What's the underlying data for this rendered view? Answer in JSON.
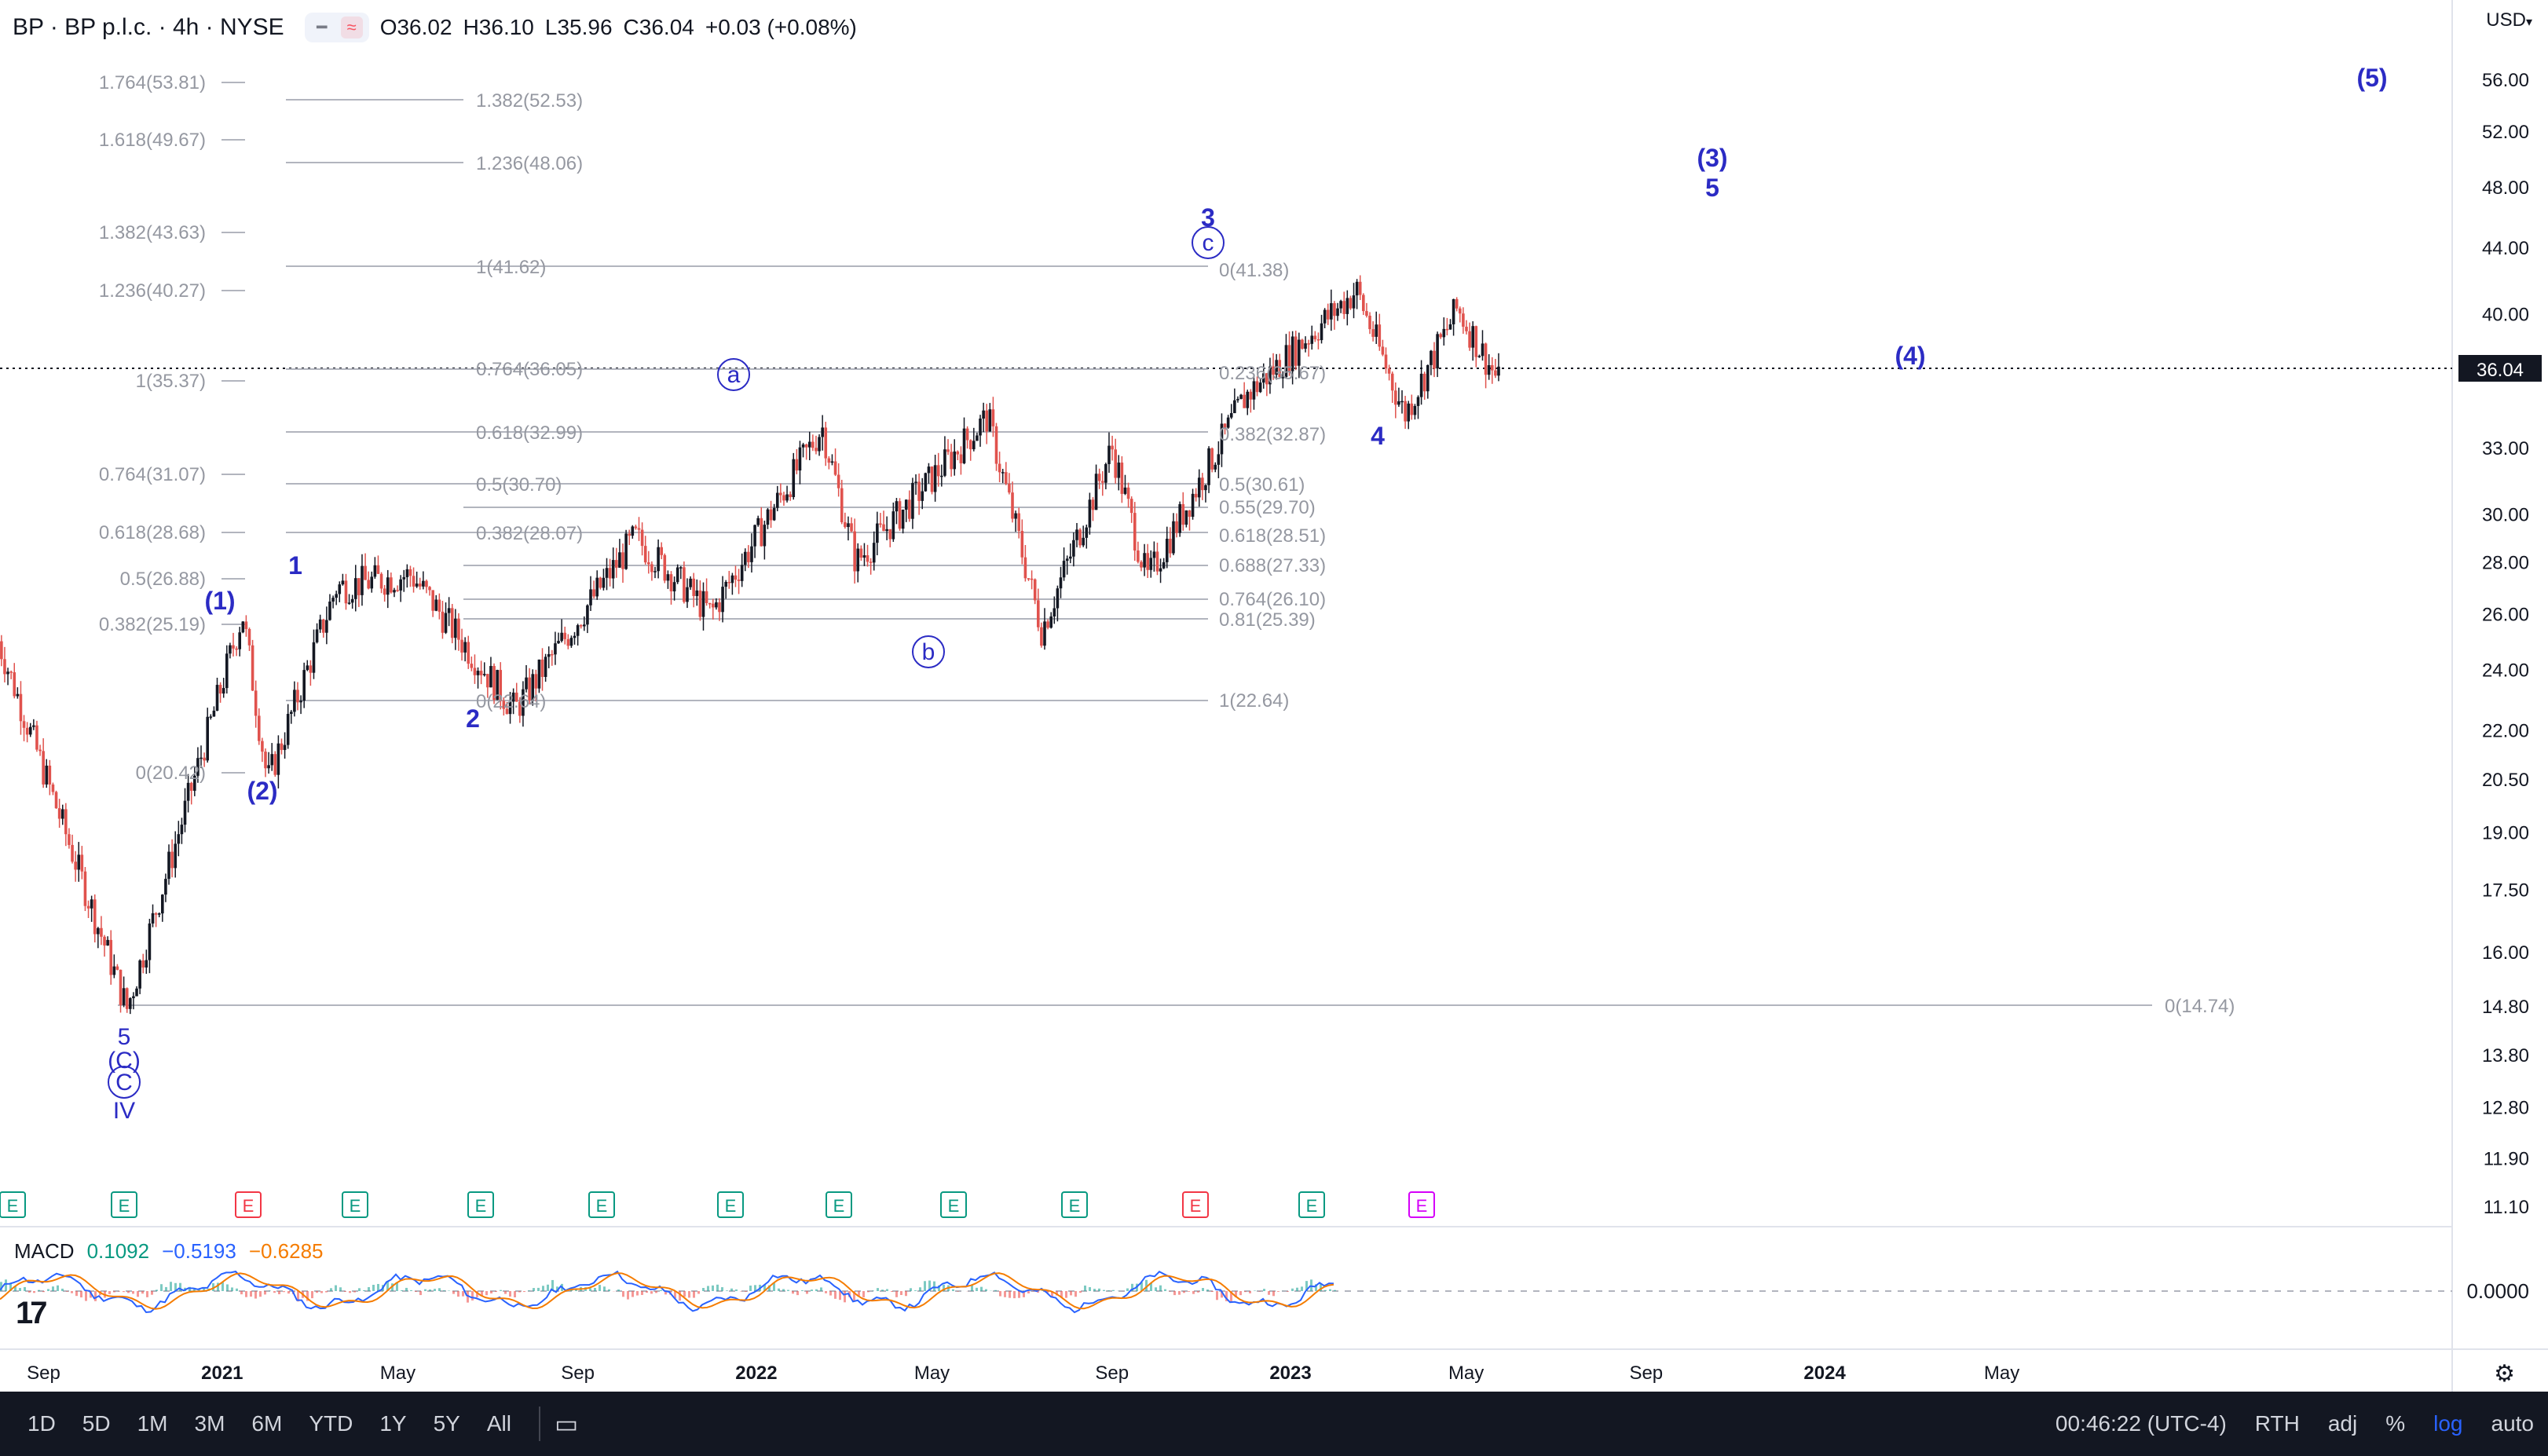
{
  "header": {
    "symbol_line": "BP · BP p.l.c. · 4h · NYSE",
    "ohlc": [
      {
        "k": "O",
        "v": "36.02"
      },
      {
        "k": "H",
        "v": "36.10"
      },
      {
        "k": "L",
        "v": "35.96"
      },
      {
        "k": "C",
        "v": "36.04"
      }
    ],
    "change": "+0.03 (+0.08%)",
    "currency": "USD"
  },
  "price_axis": {
    "ticks": [
      "56.00",
      "52.00",
      "48.00",
      "44.00",
      "40.00",
      "33.00",
      "30.00",
      "28.00",
      "26.00",
      "24.00",
      "22.00",
      "20.50",
      "19.00",
      "17.50",
      "16.00",
      "14.80",
      "13.80",
      "12.80",
      "11.90",
      "11.10"
    ],
    "last_price": "36.04",
    "last_price_color": "#131722"
  },
  "time_axis": {
    "labels": [
      "Sep",
      "2021",
      "May",
      "Sep",
      "2022",
      "May",
      "Sep",
      "2023",
      "May",
      "Sep",
      "2024",
      "May"
    ]
  },
  "fib_labels_left": [
    "1.764(53.81)",
    "1.618(49.67)",
    "1.382(43.63)",
    "1.236(40.27)",
    "1(35.37)",
    "0.764(31.07)",
    "0.618(28.68)",
    "0.5(26.88)",
    "0.382(25.19)",
    "0(20.42)"
  ],
  "fib_labels_mid": [
    "1.382(52.53)",
    "1.236(48.06)",
    "1(41.62)",
    "0.764(36.05)",
    "0.618(32.99)",
    "0.5(30.70)",
    "0.382(28.07)",
    "0(22.64)"
  ],
  "fib_labels_right": [
    "0(41.38)",
    "0.236(35.67)",
    "0.382(32.87)",
    "0.5(30.61)",
    "0.55(29.70)",
    "0.618(28.51)",
    "0.688(27.33)",
    "0.764(26.10)",
    "0.81(25.39)",
    "1(22.64)"
  ],
  "fib_label_far": "0(14.74)",
  "wave_labels": {
    "w1": "1",
    "w2": "2",
    "w3": "3",
    "w4": "4",
    "w5": "5",
    "p1": "(1)",
    "p2": "(2)",
    "p3": "(3)",
    "p4": "(4)",
    "p5": "(5)",
    "c_a": "a",
    "c_b": "b",
    "c_c": "c",
    "bottom_5": "5",
    "bottom_C_paren": "(C)",
    "bottom_C": "C",
    "bottom_IV": "IV"
  },
  "events": [
    "E",
    "E",
    "E",
    "E",
    "E",
    "E",
    "E",
    "E",
    "E",
    "E",
    "E",
    "E",
    "E"
  ],
  "macd": {
    "name": "MACD",
    "v1": "0.1092",
    "v1_color": "#089981",
    "v2": "−0.5193",
    "v2_color": "#2962ff",
    "v3": "−0.6285",
    "v3_color": "#f57c00",
    "zero_label": "0.0000"
  },
  "bottom_bar": {
    "timeframes": [
      "1D",
      "5D",
      "1M",
      "3M",
      "6M",
      "YTD",
      "1Y",
      "5Y",
      "All"
    ],
    "clock": "00:46:22 (UTC-4)",
    "session": "RTH",
    "adj": "adj",
    "percent": "%",
    "log": "log",
    "auto": "auto"
  },
  "colors": {
    "wave_blue": "#2b2bc4",
    "candle_up": "#131722",
    "candle_down": "#e0524d",
    "fib_line": "#9598a1",
    "fib_text": "#9598a1"
  },
  "chart_data": {
    "type": "candlestick",
    "scale": "log",
    "ylim": [
      11.1,
      58
    ],
    "x_range": [
      "2020-09",
      "2024-06"
    ],
    "key_points": [
      {
        "x": "2020-08-01",
        "y": 25.0
      },
      {
        "x": "2020-10-28",
        "y": 14.74
      },
      {
        "x": "2021-01-15",
        "y": 26.0
      },
      {
        "x": "2021-02-01",
        "y": 20.42
      },
      {
        "x": "2021-03-20",
        "y": 27.0
      },
      {
        "x": "2021-05-10",
        "y": 27.5
      },
      {
        "x": "2021-07-20",
        "y": 22.64
      },
      {
        "x": "2021-10-10",
        "y": 29.0
      },
      {
        "x": "2021-12-01",
        "y": 26.0
      },
      {
        "x": "2022-02-15",
        "y": 34.0
      },
      {
        "x": "2022-03-10",
        "y": 28.0
      },
      {
        "x": "2022-06-08",
        "y": 34.5
      },
      {
        "x": "2022-07-15",
        "y": 25.4
      },
      {
        "x": "2022-09-01",
        "y": 33.0
      },
      {
        "x": "2022-09-25",
        "y": 27.3
      },
      {
        "x": "2022-12-01",
        "y": 35.5
      },
      {
        "x": "2023-02-15",
        "y": 41.38
      },
      {
        "x": "2023-03-20",
        "y": 34.6
      },
      {
        "x": "2023-04-25",
        "y": 40.3
      },
      {
        "x": "2023-05-25",
        "y": 36.04
      }
    ]
  }
}
